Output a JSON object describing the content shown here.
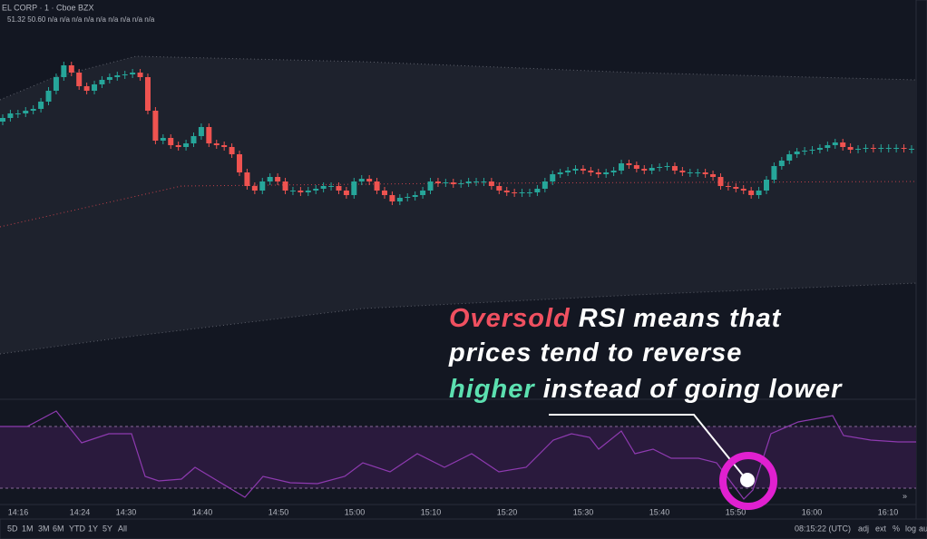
{
  "header": {
    "symbol": "EL CORP · 1 · Cboe BZX",
    "values": "51.32  50.60  n/a  n/a  n/a  n/a  n/a  n/a  n/a  n/a  n/a"
  },
  "time_axis": [
    "14:16",
    "14:24",
    "14:30",
    "14:40",
    "14:50",
    "15:00",
    "15:10",
    "15:20",
    "15:30",
    "15:40",
    "15:50",
    "16:00",
    "16:10"
  ],
  "ranges": [
    "5D",
    "1M",
    "3M",
    "6M",
    "YTD",
    "1Y",
    "5Y",
    "All"
  ],
  "status": {
    "clock": "08:15:22 (UTC)",
    "options": [
      "adj",
      "ext",
      "%",
      "log",
      "auto"
    ]
  },
  "caption": {
    "line1_highlight": "Oversold",
    "line1_rest": "RSI means that",
    "line2": "prices tend to reverse",
    "line3_highlight": "higher",
    "line3_rest": "instead of going lower"
  }
}
